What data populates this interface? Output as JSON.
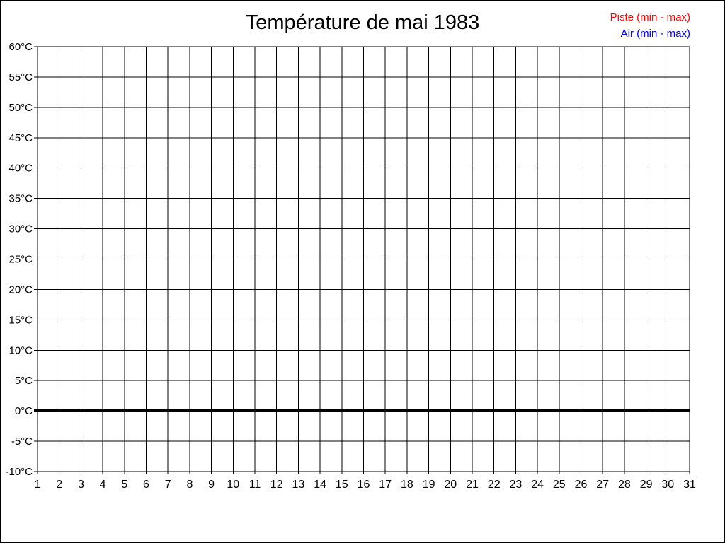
{
  "chart_data": {
    "type": "line",
    "title": "Température de mai 1983",
    "grid": true,
    "legend_position": "top-right",
    "x": {
      "label": "",
      "ticks": [
        1,
        2,
        3,
        4,
        5,
        6,
        7,
        8,
        9,
        10,
        11,
        12,
        13,
        14,
        15,
        16,
        17,
        18,
        19,
        20,
        21,
        22,
        23,
        24,
        25,
        26,
        27,
        28,
        29,
        30,
        31
      ]
    },
    "y": {
      "label": "",
      "unit": "°C",
      "min": -10,
      "max": 60,
      "step": 5,
      "tick_values": [
        60,
        55,
        50,
        45,
        40,
        35,
        30,
        25,
        20,
        15,
        10,
        5,
        0,
        -5,
        -10
      ],
      "tick_labels": [
        "60°C",
        "55°C",
        "50°C",
        "45°C",
        "40°C",
        "35°C",
        "30°C",
        "25°C",
        "20°C",
        "15°C",
        "10°C",
        "5°C",
        "0°C",
        "-5°C",
        "-10°C"
      ]
    },
    "zero_line": {
      "value": 0,
      "bold": true
    },
    "series": [
      {
        "name": "Piste (min - max)",
        "color": "#ff0000",
        "values": []
      },
      {
        "name": "Air (min - max)",
        "color": "#0000ff",
        "values": []
      }
    ],
    "colors": {
      "grid": "#000000",
      "text": "#000000",
      "background": "#ffffff"
    }
  }
}
